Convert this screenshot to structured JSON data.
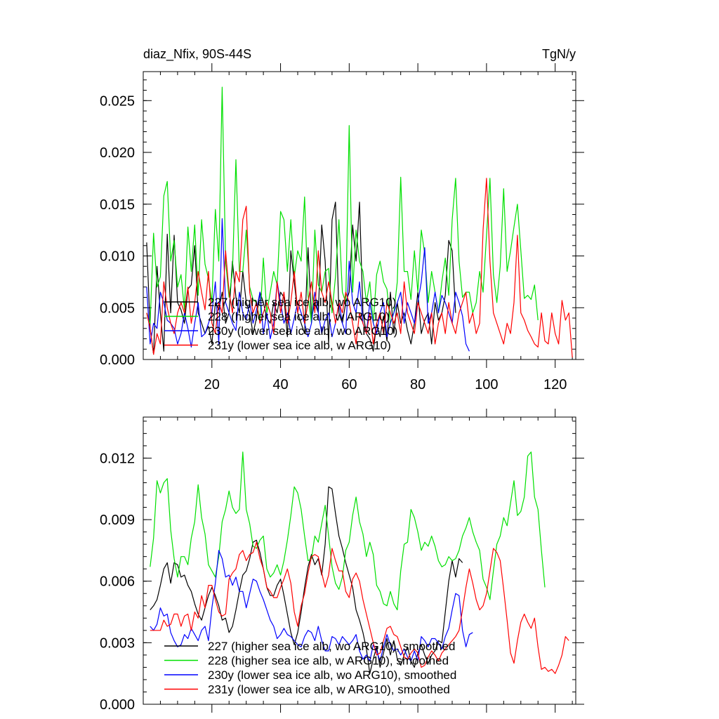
{
  "chart_data": [
    {
      "type": "line",
      "title": "diaz_Nfix, 90S-44S",
      "units_label": "TgN/y",
      "xlabel": "",
      "ylabel": "",
      "xlim": [
        0,
        126
      ],
      "ylim": [
        0,
        0.0278
      ],
      "x_ticks": [
        20,
        40,
        60,
        80,
        100,
        120
      ],
      "x_tick_labels": [
        "20",
        "40",
        "60",
        "80",
        "100",
        "120"
      ],
      "y_ticks": [
        0,
        0.005,
        0.01,
        0.015,
        0.02,
        0.025
      ],
      "y_tick_labels": [
        "0.000",
        "0.005",
        "0.010",
        "0.015",
        "0.020",
        "0.025"
      ],
      "legend_position": "lower-left",
      "series": [
        {
          "name": "227 (higher sea ice alb, wo ARG10)",
          "color": "#000000",
          "start_x": 1,
          "values": [
            0.0113,
            0.003,
            0.0005,
            0.009,
            0.0045,
            0.0008,
            0.0121,
            0.0045,
            0.012,
            0.0055,
            0.0048,
            0.0035,
            0.0068,
            0.0072,
            0.011,
            0.0045,
            0.0035,
            0.0025,
            0.0032,
            0.0015,
            0.0055,
            0.0048,
            0.0065,
            0.0035,
            0.0045,
            0.0095,
            0.006,
            0.0045,
            0.0085,
            0.0055,
            0.0045,
            0.0025,
            0.004,
            0.0065,
            0.0055,
            0.004,
            0.0035,
            0.0055,
            0.0045,
            0.0065,
            0.006,
            0.0022,
            0.0105,
            0.0075,
            0.0045,
            0.0035,
            0.0025,
            0.0108,
            0.004,
            0.0055,
            0.0045,
            0.013,
            0.0095,
            0.0015,
            0.0135,
            0.0152,
            0.0045,
            0.0035,
            0.0055,
            0.0065,
            0.013,
            0.0095,
            0.0152,
            0.0045,
            0.0025,
            0.002,
            0.0008,
            0.0035,
            0.0022,
            0.0042,
            0.0018,
            0.0065,
            0.0025,
            0.0055,
            0.0035,
            0.0045,
            0.0028,
            0.0015,
            0.0035,
            0.0065,
            0.0025,
            0.0038,
            0.0045,
            0.0015,
            0.0055,
            0.0038,
            0.0045,
            0.0062,
            0.0115,
            0.0105,
            0.0045
          ]
        },
        {
          "name": "228 (higher sea ice alb, w ARG10)",
          "color": "#00e000",
          "start_x": 1,
          "values": [
            0.0045,
            0.0035,
            0.0122,
            0.007,
            0.008,
            0.0158,
            0.0172,
            0.0095,
            0.0115,
            0.007,
            0.0082,
            0.0048,
            0.0128,
            0.0085,
            0.013,
            0.0062,
            0.0135,
            0.0092,
            0.0078,
            0.0055,
            0.0145,
            0.0095,
            0.0263,
            0.0095,
            0.006,
            0.0085,
            0.0193,
            0.0085,
            0.0085,
            0.0125,
            0.007,
            0.0058,
            0.0055,
            0.0038,
            0.0098,
            0.0045,
            0.0065,
            0.0085,
            0.0072,
            0.0143,
            0.0135,
            0.0085,
            0.0135,
            0.008,
            0.0105,
            0.0095,
            0.0157,
            0.0062,
            0.0035,
            0.0125,
            0.0072,
            0.0065,
            0.0085,
            0.0088,
            0.0045,
            0.008,
            0.0135,
            0.0065,
            0.0055,
            0.0226,
            0.0065,
            0.0125,
            0.0095,
            0.0085,
            0.0055,
            0.0075,
            0.0035,
            0.0082,
            0.0095,
            0.0075,
            0.0068,
            0.0035,
            0.0045,
            0.0075,
            0.0176,
            0.0085,
            0.0085,
            0.0058,
            0.0105,
            0.0065,
            0.0125,
            0.0102,
            0.0055,
            0.0085,
            0.0065,
            0.0045,
            0.0075,
            0.0098,
            0.0062,
            0.0135,
            0.0175,
            0.0095,
            0.006,
            0.0065,
            0.0065,
            0.0045,
            0.0055,
            0.0085,
            0.0065,
            0.012,
            0.0175,
            0.0082,
            0.0055,
            0.009,
            0.0165,
            0.0085,
            0.0105,
            0.0128,
            0.015,
            0.0105,
            0.0059,
            0.0062,
            0.0058,
            0.0072,
            0.0038
          ]
        },
        {
          "name": "230y (lower sea ice alb, wo ARG10)",
          "color": "#0000ff",
          "start_x": 1,
          "values": [
            0.007,
            0.0015,
            0.0035,
            0.003,
            0.0065,
            0.0055,
            0.0038,
            0.0035,
            0.003,
            0.0015,
            0.0025,
            0.0045,
            0.003,
            0.0012,
            0.0035,
            0.0055,
            0.0022,
            0.0025,
            0.0035,
            0.0045,
            0.0075,
            0.0015,
            0.0136,
            0.0055,
            0.0045,
            0.0035,
            0.0028,
            0.0065,
            0.0045,
            0.0038,
            0.0055,
            0.0035,
            0.0048,
            0.0065,
            0.0025,
            0.0045,
            0.002,
            0.0035,
            0.0075,
            0.0055,
            0.0035,
            0.0045,
            0.0025,
            0.004,
            0.0055,
            0.0045,
            0.0035,
            0.0022,
            0.0035,
            0.0065,
            0.0045,
            0.0025,
            0.0038,
            0.0045,
            0.0022,
            0.0035,
            0.0055,
            0.0035,
            0.0025,
            0.0095,
            0.0055,
            0.0045,
            0.0075,
            0.0035,
            0.0025,
            0.0055,
            0.0035,
            0.0025,
            0.0045,
            0.0055,
            0.0022,
            0.0035,
            0.0045,
            0.0055,
            0.0065,
            0.0035,
            0.0055,
            0.0045,
            0.0035,
            0.0055,
            0.0075,
            0.0108,
            0.0035,
            0.0045,
            0.0065,
            0.0045,
            0.0062,
            0.0055,
            0.0045,
            0.0035,
            0.0065,
            0.0055,
            0.0042,
            0.0015,
            0.0008
          ]
        },
        {
          "name": "231y (lower sea ice alb, w ARG10)",
          "color": "#ff0000",
          "start_x": 1,
          "values": [
            0.0045,
            0.003,
            0.0005,
            0.0025,
            0.0015,
            0.0075,
            0.005,
            0.0035,
            0.0025,
            0.0045,
            0.0055,
            0.0045,
            0.007,
            0.0035,
            0.0055,
            0.0085,
            0.0065,
            0.0048,
            0.0085,
            0.0035,
            0.0025,
            0.0055,
            0.0045,
            0.0105,
            0.0065,
            0.0045,
            0.0085,
            0.0075,
            0.0135,
            0.0148,
            0.0065,
            0.0045,
            0.0055,
            0.0035,
            0.0045,
            0.0055,
            0.0045,
            0.0025,
            0.0075,
            0.0045,
            0.0065,
            0.0035,
            0.0055,
            0.0085,
            0.0045,
            0.0065,
            0.0035,
            0.0055,
            0.0075,
            0.0045,
            0.0105,
            0.0065,
            0.0055,
            0.0075,
            0.0055,
            0.0035,
            0.0055,
            0.0045,
            0.0065,
            0.0055,
            0.0035,
            0.0015,
            0.0045,
            0.0035,
            0.0025,
            0.0045,
            0.0015,
            0.0035,
            0.0045,
            0.0025,
            0.0055,
            0.0045,
            0.0035,
            0.0045,
            0.0025,
            0.0075,
            0.0045,
            0.0035,
            0.0025,
            0.0055,
            0.0045,
            0.0035,
            0.0025,
            0.0045,
            0.0015,
            0.0035,
            0.0045,
            0.0025,
            0.0055,
            0.0035,
            0.0025,
            0.0045,
            0.0055,
            0.0065,
            0.0035,
            0.0045,
            0.0025,
            0.0035,
            0.0125,
            0.0175,
            0.0095,
            0.0045,
            0.0035,
            0.0025,
            0.0015,
            0.0035,
            0.0025,
            0.0055,
            0.012,
            0.0045,
            0.0038,
            0.0028,
            0.0022,
            0.0015,
            0.0012,
            0.0045,
            0.0018,
            0.0015,
            0.0045,
            0.0025,
            0.0015,
            0.0057,
            0.0038,
            0.0045,
            0.0002
          ]
        }
      ]
    },
    {
      "type": "line",
      "title": "",
      "xlabel": "",
      "ylabel": "",
      "xlim": [
        0,
        126
      ],
      "ylim": [
        0,
        0.014
      ],
      "x_ticks": [
        20,
        40,
        60,
        80,
        100,
        120
      ],
      "x_tick_labels": [],
      "y_ticks": [
        0,
        0.003,
        0.006,
        0.009,
        0.012
      ],
      "y_tick_labels": [
        "0.000",
        "0.003",
        "0.006",
        "0.009",
        "0.012"
      ],
      "legend_position": "lower-left",
      "series": [
        {
          "name": "227 (higher sea ice alb, wo ARG10), smoothed",
          "color": "#000000",
          "start_x": 2,
          "values": [
            0.0046,
            0.0048,
            0.0051,
            0.0058,
            0.0066,
            0.0069,
            0.0059,
            0.0069,
            0.0068,
            0.0062,
            0.0063,
            0.0058,
            0.0055,
            0.0049,
            0.0044,
            0.0041,
            0.0047,
            0.0053,
            0.0057,
            0.0053,
            0.0048,
            0.0041,
            0.0042,
            0.0035,
            0.0038,
            0.0046,
            0.0055,
            0.0063,
            0.0065,
            0.0071,
            0.0079,
            0.008,
            0.0074,
            0.0066,
            0.0057,
            0.0053,
            0.0053,
            0.0058,
            0.0061,
            0.0053,
            0.0044,
            0.0035,
            0.0029,
            0.0035,
            0.0045,
            0.0057,
            0.0067,
            0.0073,
            0.0068,
            0.0071,
            0.0063,
            0.0078,
            0.0106,
            0.0105,
            0.0093,
            0.0082,
            0.0076,
            0.0069,
            0.0063,
            0.0057,
            0.0046,
            0.0041,
            0.0035,
            0.0027,
            0.0015,
            0.0022,
            0.0028,
            0.0018,
            0.0025,
            0.0032,
            0.0024,
            0.0031,
            0.0022,
            0.0019,
            0.0024,
            0.0028,
            0.0021,
            0.0018,
            0.0025,
            0.0029,
            0.0024,
            0.002,
            0.0024,
            0.0026,
            0.0031,
            0.003,
            0.0045,
            0.006,
            0.007,
            0.0062,
            0.0071,
            0.0069
          ]
        },
        {
          "name": "228 (higher sea ice alb, w ARG10), smoothed",
          "color": "#00e000",
          "start_x": 2,
          "values": [
            0.0067,
            0.0081,
            0.0109,
            0.0103,
            0.0108,
            0.011,
            0.0085,
            0.0071,
            0.0062,
            0.0072,
            0.0072,
            0.0068,
            0.0081,
            0.0089,
            0.0107,
            0.0091,
            0.0083,
            0.0068,
            0.0065,
            0.0062,
            0.0072,
            0.0089,
            0.0095,
            0.0104,
            0.0096,
            0.0093,
            0.0095,
            0.0123,
            0.0095,
            0.0088,
            0.0077,
            0.0076,
            0.008,
            0.0082,
            0.0066,
            0.0062,
            0.0064,
            0.0068,
            0.0063,
            0.007,
            0.008,
            0.0092,
            0.0106,
            0.0103,
            0.0095,
            0.0082,
            0.007,
            0.0071,
            0.0082,
            0.0079,
            0.0088,
            0.0097,
            0.0082,
            0.0067,
            0.0059,
            0.0056,
            0.0062,
            0.0075,
            0.0079,
            0.0092,
            0.0101,
            0.0089,
            0.0083,
            0.0072,
            0.0079,
            0.0073,
            0.0058,
            0.0055,
            0.0049,
            0.0048,
            0.0055,
            0.0049,
            0.0046,
            0.0065,
            0.0078,
            0.0079,
            0.0095,
            0.0091,
            0.0084,
            0.0075,
            0.0079,
            0.0077,
            0.0082,
            0.0077,
            0.007,
            0.0067,
            0.0068,
            0.0072,
            0.007,
            0.0071,
            0.0075,
            0.0082,
            0.0086,
            0.0091,
            0.0084,
            0.0079,
            0.0075,
            0.0061,
            0.0057,
            0.0051,
            0.0065,
            0.0078,
            0.0082,
            0.0091,
            0.0087,
            0.0098,
            0.0109,
            0.0092,
            0.0094,
            0.0101,
            0.0121,
            0.0123,
            0.0101,
            0.0095,
            0.0075,
            0.0057
          ]
        },
        {
          "name": "230y (lower sea ice alb, wo ARG10), smoothed",
          "color": "#0000ff",
          "start_x": 2,
          "values": [
            0.0038,
            0.0036,
            0.0039,
            0.0047,
            0.0043,
            0.0044,
            0.0035,
            0.0031,
            0.0028,
            0.0029,
            0.0034,
            0.0032,
            0.0037,
            0.0034,
            0.0031,
            0.0036,
            0.0038,
            0.0031,
            0.0047,
            0.0059,
            0.0075,
            0.0071,
            0.0062,
            0.0063,
            0.0058,
            0.0062,
            0.0055,
            0.0055,
            0.0047,
            0.0054,
            0.0061,
            0.006,
            0.0055,
            0.0051,
            0.0046,
            0.0041,
            0.0038,
            0.0032,
            0.0034,
            0.0037,
            0.0034,
            0.0033,
            0.0031,
            0.0029,
            0.0028,
            0.0033,
            0.0036,
            0.0035,
            0.0031,
            0.0038,
            0.0031,
            0.0026,
            0.0026,
            0.0033,
            0.0032,
            0.0029,
            0.0033,
            0.0031,
            0.0029,
            0.0031,
            0.0034,
            0.0026,
            0.0022,
            0.0024,
            0.0021,
            0.0029,
            0.0026,
            0.0021,
            0.0028,
            0.0034,
            0.0029,
            0.0026,
            0.0027,
            0.0024,
            0.0027,
            0.0023,
            0.0021,
            0.0026,
            0.0021,
            0.0033,
            0.0031,
            0.0028,
            0.0032,
            0.0032,
            0.003,
            0.0027,
            0.0033,
            0.0037,
            0.0046,
            0.0054,
            0.0053,
            0.0036,
            0.0028,
            0.0034,
            0.0035
          ]
        },
        {
          "name": "231y (lower sea ice alb, w ARG10), smoothed",
          "color": "#ff0000",
          "start_x": 2,
          "values": [
            0.0036,
            0.0036,
            0.0036,
            0.0036,
            0.0041,
            0.0038,
            0.0039,
            0.0044,
            0.0044,
            0.0038,
            0.0043,
            0.0044,
            0.0036,
            0.0045,
            0.0042,
            0.0053,
            0.0047,
            0.0058,
            0.0058,
            0.0051,
            0.0045,
            0.0043,
            0.0044,
            0.0061,
            0.0064,
            0.0066,
            0.0073,
            0.0075,
            0.007,
            0.0073,
            0.0074,
            0.0079,
            0.0071,
            0.0066,
            0.0057,
            0.0055,
            0.0052,
            0.0052,
            0.0057,
            0.0061,
            0.0066,
            0.0059,
            0.0045,
            0.0038,
            0.0048,
            0.0054,
            0.0064,
            0.0072,
            0.0073,
            0.0072,
            0.0064,
            0.0057,
            0.0063,
            0.0076,
            0.007,
            0.0065,
            0.0065,
            0.0055,
            0.0052,
            0.0061,
            0.0064,
            0.006,
            0.0051,
            0.0044,
            0.0037,
            0.003,
            0.0024,
            0.0025,
            0.0031,
            0.0037,
            0.0038,
            0.0034,
            0.0033,
            0.0028,
            0.0023,
            0.0022,
            0.0025,
            0.0027,
            0.0025,
            0.0018,
            0.0019,
            0.0023,
            0.0026,
            0.0024,
            0.0021,
            0.0025,
            0.0027,
            0.0029,
            0.0031,
            0.0033,
            0.0036,
            0.0046,
            0.0057,
            0.0066,
            0.0059,
            0.0051,
            0.0046,
            0.0048,
            0.0054,
            0.0065,
            0.0076,
            0.0074,
            0.007,
            0.0056,
            0.0041,
            0.0025,
            0.002,
            0.0031,
            0.004,
            0.0044,
            0.004,
            0.0037,
            0.0042,
            0.0028,
            0.0017,
            0.0018,
            0.0016,
            0.0017,
            0.0015,
            0.0019,
            0.0024,
            0.0033,
            0.0031
          ]
        }
      ]
    }
  ]
}
